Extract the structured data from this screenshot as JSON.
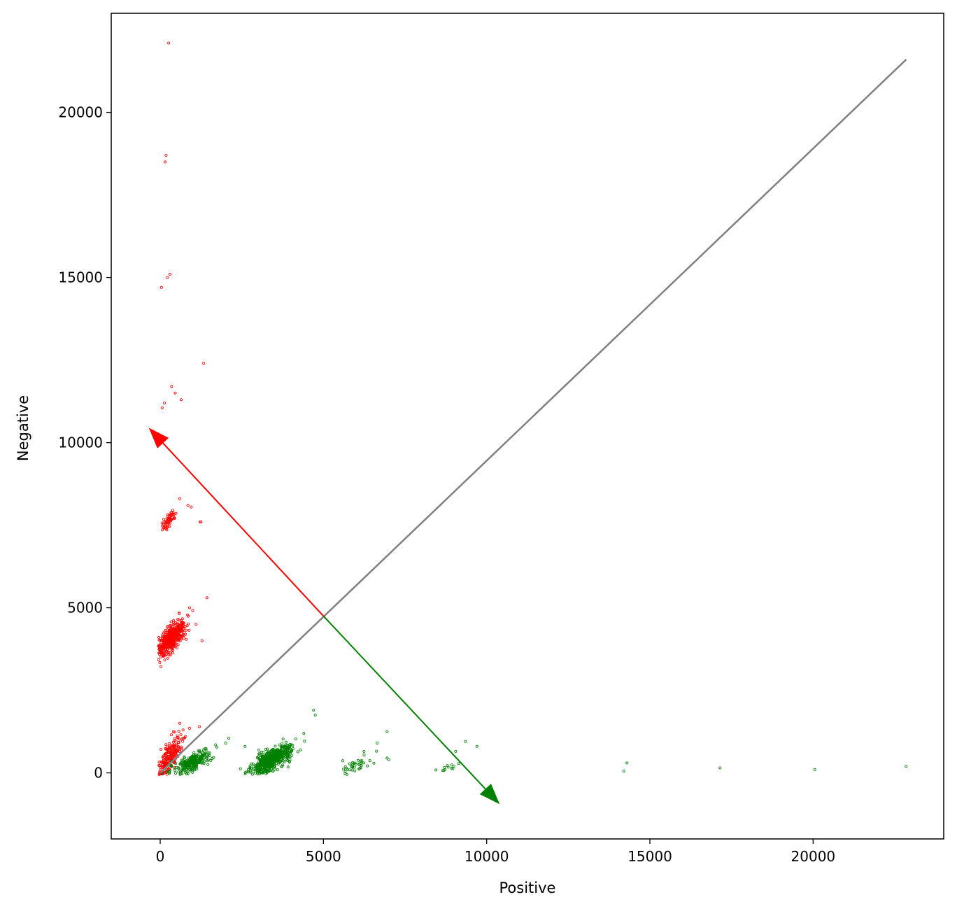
{
  "chart_data": {
    "type": "scatter",
    "title": "",
    "xlabel": "Positive",
    "ylabel": "Negative",
    "xlim": [
      -1500,
      24000
    ],
    "ylim": [
      -2000,
      23000
    ],
    "xticks": [
      0,
      5000,
      10000,
      15000,
      20000
    ],
    "yticks": [
      0,
      5000,
      10000,
      15000,
      20000
    ],
    "xtick_labels": [
      "0",
      "5000",
      "10000",
      "15000",
      "20000"
    ],
    "ytick_labels": [
      "0",
      "5000",
      "10000",
      "15000",
      "20000"
    ],
    "grid": false,
    "colors": {
      "negative": "#ff0000",
      "positive": "#008000",
      "line": "#808080"
    },
    "series": [
      {
        "color": "#ff0000",
        "clusters": [
          {
            "cx": 300,
            "cy": 500,
            "sx": 180,
            "sy": 300,
            "n": 220
          },
          {
            "cx": 350,
            "cy": 4100,
            "sx": 200,
            "sy": 250,
            "n": 520
          },
          {
            "cx": 250,
            "cy": 7600,
            "sx": 100,
            "sy": 150,
            "n": 60
          }
        ],
        "outliers": [
          [
            260,
            22100
          ],
          [
            180,
            18700
          ],
          [
            150,
            18500
          ],
          [
            300,
            15100
          ],
          [
            220,
            15000
          ],
          [
            40,
            14700
          ],
          [
            1330,
            12400
          ],
          [
            350,
            11700
          ],
          [
            460,
            11500
          ],
          [
            640,
            11300
          ],
          [
            130,
            11200
          ],
          [
            60,
            11050
          ],
          [
            600,
            8300
          ],
          [
            850,
            8100
          ],
          [
            950,
            8050
          ],
          [
            1220,
            7600
          ],
          [
            1250,
            7600
          ],
          [
            1430,
            5300
          ],
          [
            1280,
            4000
          ],
          [
            1100,
            4500
          ],
          [
            900,
            5000
          ],
          [
            1200,
            1400
          ],
          [
            600,
            1500
          ],
          [
            900,
            1350
          ],
          [
            700,
            1300
          ]
        ]
      },
      {
        "color": "#008000",
        "clusters": [
          {
            "cx": 950,
            "cy": 300,
            "sx": 300,
            "sy": 180,
            "n": 260
          },
          {
            "cx": 3400,
            "cy": 400,
            "sx": 300,
            "sy": 200,
            "n": 620
          },
          {
            "cx": 6000,
            "cy": 250,
            "sx": 250,
            "sy": 150,
            "n": 40
          },
          {
            "cx": 8800,
            "cy": 150,
            "sx": 200,
            "sy": 100,
            "n": 12
          }
        ],
        "outliers": [
          [
            4700,
            1900
          ],
          [
            4750,
            1750
          ],
          [
            6950,
            1250
          ],
          [
            6650,
            900
          ],
          [
            6950,
            450
          ],
          [
            7000,
            400
          ],
          [
            9350,
            950
          ],
          [
            9700,
            800
          ],
          [
            9050,
            650
          ],
          [
            14300,
            300
          ],
          [
            14200,
            50
          ],
          [
            17150,
            150
          ],
          [
            20050,
            100
          ],
          [
            22850,
            200
          ],
          [
            2700,
            100
          ],
          [
            2600,
            800
          ],
          [
            2100,
            1050
          ],
          [
            1700,
            850
          ],
          [
            4400,
            1200
          ],
          [
            4300,
            700
          ]
        ]
      }
    ],
    "line": {
      "x": [
        0,
        22850
      ],
      "y": [
        0,
        21600
      ],
      "color": "#808080"
    },
    "arrows": [
      {
        "from": [
          5000,
          4750
        ],
        "to": [
          -350,
          10450
        ],
        "color": "#ff0000"
      },
      {
        "from": [
          5000,
          4750
        ],
        "to": [
          10400,
          -950
        ],
        "color": "#008000"
      }
    ]
  }
}
